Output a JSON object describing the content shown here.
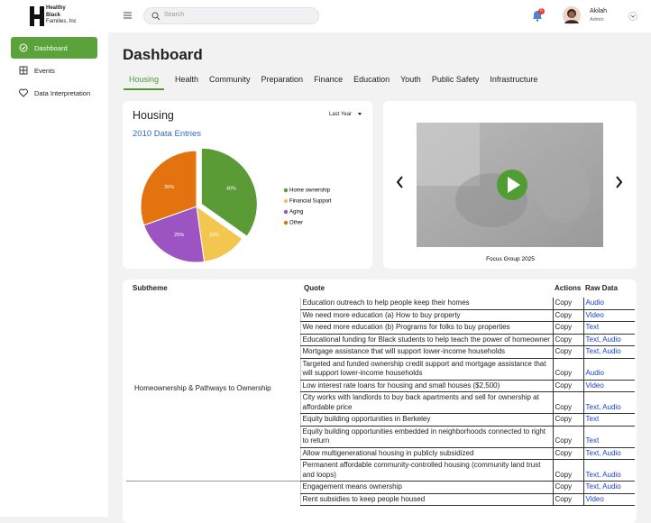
{
  "header": {
    "logo": [
      "Healthy",
      "Black",
      "Families, Inc"
    ],
    "search_placeholder": "Search",
    "notification_count": 6,
    "user": {
      "name": "Akilah",
      "role": "Admin"
    }
  },
  "sidebar": {
    "items": [
      "Dashboard",
      "Events",
      "Data Interpretation"
    ]
  },
  "page_title": "Dashboard",
  "tabs": [
    "Housing",
    "Health",
    "Community",
    "Preparation",
    "Finance",
    "Education",
    "Youth",
    "Public Safety",
    "Infrastructure"
  ],
  "chart_data": {
    "type": "pie",
    "title": "Housing",
    "subtitle": "2010 Data Entries",
    "filter": "Last Year",
    "categories": [
      "Home ownership",
      "Financial Support",
      "Aging",
      "Other"
    ],
    "values": [
      40,
      15,
      25,
      35
    ],
    "value_labels": [
      "40%",
      "15%",
      "25%",
      "35%"
    ],
    "colors": [
      "#5b9b35",
      "#f3c64f",
      "#9b54c2",
      "#e2730f"
    ],
    "legend": "right"
  },
  "video": {
    "caption": "Focus Group 2025"
  },
  "table": {
    "columns": [
      "Subtheme",
      "Quote",
      "Actions",
      "Raw Data"
    ],
    "groups": [
      {
        "subtheme": "Homeownership & Pathways to Ownership",
        "rows": [
          {
            "quote": "Education outreach to help people keep their homes",
            "action": "Copy",
            "raw_data": "Audio"
          },
          {
            "quote": "We need more education (a) How to buy property",
            "action": "Copy",
            "raw_data": "Video"
          },
          {
            "quote": "We need more education (b) Programs for folks to buy properties",
            "action": "Copy",
            "raw_data": "Text"
          },
          {
            "quote": "Educational funding for Black students to help teach the power of homeowner",
            "action": "Copy",
            "raw_data": "Text, Audio"
          },
          {
            "quote": "Mortgage assistance that will support lower-income households",
            "action": "Copy",
            "raw_data": "Text, Audio"
          },
          {
            "quote": "Targeted and funded ownership credit support and mortgage assistance that will support lower-income households",
            "action": "Copy",
            "raw_data": "Audio"
          },
          {
            "quote": "Low interest rate loans for housing and small houses ($2,500)",
            "action": "Copy",
            "raw_data": "Video"
          },
          {
            "quote": "City works with landlords to buy back apartments and sell for ownership at affordable price",
            "action": "Copy",
            "raw_data": "Text, Audio"
          },
          {
            "quote": "Equity building opportunities in Berkeley",
            "action": "Copy",
            "raw_data": "Text"
          },
          {
            "quote": "Equity building opportunities embedded in neighborhoods connected to right to return",
            "action": "Copy",
            "raw_data": "Text"
          },
          {
            "quote": "Allow multigenerational housing in publicly subsidized",
            "action": "Copy",
            "raw_data": "Text, Audio"
          },
          {
            "quote": "Permanent affordable community-controlled housing (community land trust and loops)",
            "action": "Copy",
            "raw_data": "Text, Audio"
          }
        ]
      },
      {
        "rows": [
          {
            "quote": "Engagement means ownership",
            "action": "Copy",
            "raw_data": "Text, Audio"
          },
          {
            "quote": "Rent subsidies to keep people housed",
            "action": "Copy",
            "raw_data": "Video"
          }
        ]
      }
    ]
  }
}
